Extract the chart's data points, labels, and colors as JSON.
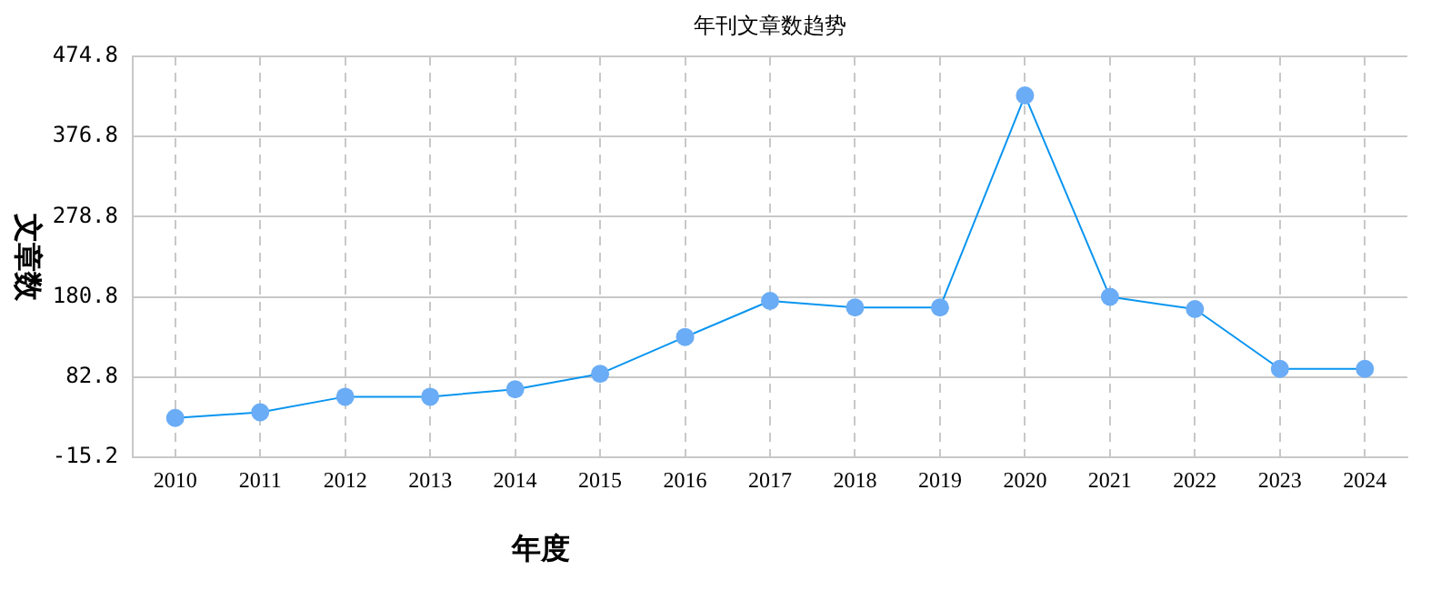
{
  "chart_data": {
    "type": "line",
    "title": "年刊文章数趋势",
    "xlabel": "年度",
    "ylabel": "文章数",
    "categories": [
      "2010",
      "2011",
      "2012",
      "2013",
      "2014",
      "2015",
      "2016",
      "2017",
      "2018",
      "2019",
      "2020",
      "2021",
      "2022",
      "2023",
      "2024"
    ],
    "series": [
      {
        "color": "#0a95f0",
        "values": [
          33,
          40,
          59,
          59,
          68,
          87,
          132,
          176,
          168,
          168,
          427,
          181,
          166,
          93,
          93
        ]
      }
    ],
    "ylim": [
      -15.2,
      474.8
    ],
    "yticks": [
      -15.2,
      82.8,
      180.8,
      278.8,
      376.8,
      474.8
    ],
    "grid": true,
    "legend": false,
    "marker": "circle",
    "line_style": "solid"
  }
}
